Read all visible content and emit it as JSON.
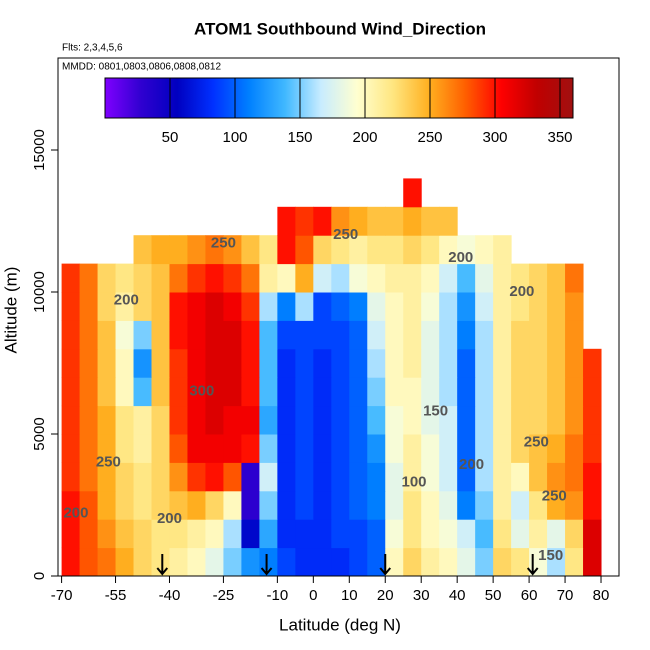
{
  "chart_data": {
    "type": "heatmap",
    "title": "ATOM1 Southbound Wind_Direction",
    "subtitle": "Flts: 2,3,4,5,6",
    "note": "MMDD: 0801,0803,0806,0808,0812",
    "x_label": "Latitude (deg N)",
    "y_label": "Altitude (m)",
    "xlim": [
      -71,
      85
    ],
    "ylim": [
      0,
      18240
    ],
    "xticks": [
      -70,
      -55,
      -40,
      -25,
      -10,
      0,
      10,
      20,
      30,
      40,
      50,
      60,
      70,
      80
    ],
    "yticks": [
      0,
      5000,
      10000,
      15000
    ],
    "x": [
      -67.5,
      -62.5,
      -57.5,
      -52.5,
      -47.5,
      -42.5,
      -37.5,
      -32.5,
      -27.5,
      -22.5,
      -17.5,
      -12.5,
      -7.5,
      -2.5,
      2.5,
      7.5,
      12.5,
      17.5,
      22.5,
      27.5,
      32.5,
      37.5,
      42.5,
      47.5,
      52.5,
      57.5,
      62.5,
      67.5,
      72.5,
      77.5
    ],
    "y": [
      500,
      1500,
      2500,
      3500,
      4500,
      5500,
      6500,
      7500,
      8500,
      9500,
      10500,
      11500,
      12500,
      13500
    ],
    "z": [
      [
        300,
        280,
        270,
        250,
        230,
        220,
        210,
        200,
        180,
        150,
        120,
        110,
        90,
        80,
        80,
        80,
        90,
        100,
        200,
        230,
        210,
        200,
        180,
        150,
        230,
        220,
        190,
        160,
        220,
        320
      ],
      [
        300,
        280,
        260,
        240,
        230,
        220,
        220,
        210,
        200,
        160,
        60,
        130,
        80,
        80,
        80,
        90,
        90,
        100,
        190,
        220,
        200,
        190,
        170,
        140,
        220,
        180,
        210,
        180,
        230,
        320
      ],
      [
        300,
        280,
        250,
        230,
        220,
        230,
        240,
        250,
        230,
        200,
        30,
        150,
        80,
        90,
        80,
        90,
        100,
        110,
        180,
        220,
        200,
        180,
        110,
        150,
        210,
        170,
        220,
        250,
        260,
        300
      ],
      [
        290,
        270,
        250,
        230,
        220,
        230,
        260,
        290,
        300,
        280,
        30,
        170,
        80,
        90,
        80,
        90,
        100,
        110,
        180,
        210,
        190,
        170,
        100,
        160,
        210,
        200,
        240,
        260,
        270,
        300
      ],
      [
        290,
        270,
        250,
        220,
        210,
        230,
        280,
        310,
        310,
        310,
        300,
        150,
        80,
        90,
        80,
        90,
        100,
        120,
        190,
        210,
        190,
        170,
        100,
        160,
        210,
        230,
        240,
        250,
        270,
        290
      ],
      [
        290,
        270,
        250,
        220,
        210,
        230,
        290,
        310,
        320,
        310,
        310,
        130,
        80,
        90,
        80,
        90,
        100,
        140,
        190,
        200,
        180,
        170,
        100,
        160,
        210,
        230,
        230,
        240,
        260,
        290
      ],
      [
        290,
        270,
        240,
        200,
        140,
        240,
        290,
        310,
        320,
        320,
        300,
        140,
        80,
        90,
        80,
        90,
        100,
        150,
        200,
        200,
        180,
        160,
        100,
        160,
        210,
        230,
        230,
        240,
        260,
        290
      ],
      [
        290,
        270,
        240,
        200,
        120,
        240,
        290,
        310,
        320,
        320,
        300,
        140,
        80,
        90,
        80,
        90,
        100,
        160,
        200,
        210,
        180,
        160,
        100,
        160,
        210,
        230,
        230,
        240,
        260,
        290
      ],
      [
        290,
        270,
        240,
        190,
        150,
        240,
        300,
        310,
        320,
        320,
        300,
        140,
        90,
        90,
        90,
        90,
        100,
        170,
        200,
        210,
        180,
        160,
        110,
        160,
        210,
        230,
        230,
        240,
        260,
        null
      ],
      [
        290,
        270,
        230,
        210,
        230,
        240,
        300,
        310,
        320,
        310,
        290,
        160,
        110,
        160,
        90,
        100,
        110,
        180,
        200,
        210,
        190,
        160,
        120,
        170,
        210,
        220,
        230,
        240,
        260,
        null
      ],
      [
        290,
        270,
        230,
        220,
        230,
        240,
        270,
        290,
        300,
        290,
        270,
        210,
        200,
        250,
        170,
        160,
        190,
        200,
        210,
        210,
        200,
        170,
        140,
        180,
        210,
        220,
        230,
        240,
        270,
        null
      ],
      [
        null,
        null,
        null,
        null,
        240,
        250,
        250,
        260,
        270,
        260,
        240,
        220,
        300,
        280,
        230,
        220,
        210,
        220,
        220,
        230,
        220,
        200,
        190,
        200,
        210,
        null,
        null,
        null,
        null,
        null
      ],
      [
        null,
        null,
        null,
        null,
        null,
        null,
        null,
        null,
        null,
        null,
        null,
        null,
        300,
        290,
        300,
        260,
        250,
        240,
        240,
        250,
        240,
        240,
        null,
        null,
        null,
        null,
        null,
        null,
        null,
        null
      ],
      [
        null,
        null,
        null,
        null,
        null,
        null,
        null,
        null,
        null,
        null,
        null,
        null,
        null,
        null,
        null,
        null,
        null,
        null,
        null,
        300,
        null,
        null,
        null,
        null,
        null,
        null,
        null,
        null,
        null,
        null
      ]
    ],
    "colorbar": {
      "zlim": [
        0,
        360
      ],
      "ticks": [
        50,
        100,
        150,
        200,
        250,
        300,
        350
      ],
      "colors": [
        "#7f00ff",
        "#3000d0",
        "#0000c0",
        "#0030ff",
        "#0080ff",
        "#40b8ff",
        "#c8ecff",
        "#ffffd0",
        "#ffe680",
        "#ffb020",
        "#ff6000",
        "#ff0000",
        "#c00000",
        "#a01010"
      ]
    },
    "contour_labels": [
      {
        "level": 250,
        "x": -25,
        "y": 11700
      },
      {
        "level": 200,
        "x": -52,
        "y": 9700
      },
      {
        "level": 300,
        "x": -31,
        "y": 6500
      },
      {
        "level": 250,
        "x": -57,
        "y": 4000
      },
      {
        "level": 200,
        "x": -66,
        "y": 2200
      },
      {
        "level": 200,
        "x": -40,
        "y": 2000
      },
      {
        "level": 250,
        "x": 9,
        "y": 12000
      },
      {
        "level": 200,
        "x": 41,
        "y": 11200
      },
      {
        "level": 200,
        "x": 58,
        "y": 10000
      },
      {
        "level": 150,
        "x": 34,
        "y": 5800
      },
      {
        "level": 100,
        "x": 28,
        "y": 3300
      },
      {
        "level": 200,
        "x": 44,
        "y": 3900
      },
      {
        "level": 250,
        "x": 62,
        "y": 4700
      },
      {
        "level": 250,
        "x": 67,
        "y": 2800
      },
      {
        "level": 150,
        "x": 66,
        "y": 700
      }
    ],
    "flight_markers": [
      -42,
      -13,
      20,
      61
    ]
  }
}
